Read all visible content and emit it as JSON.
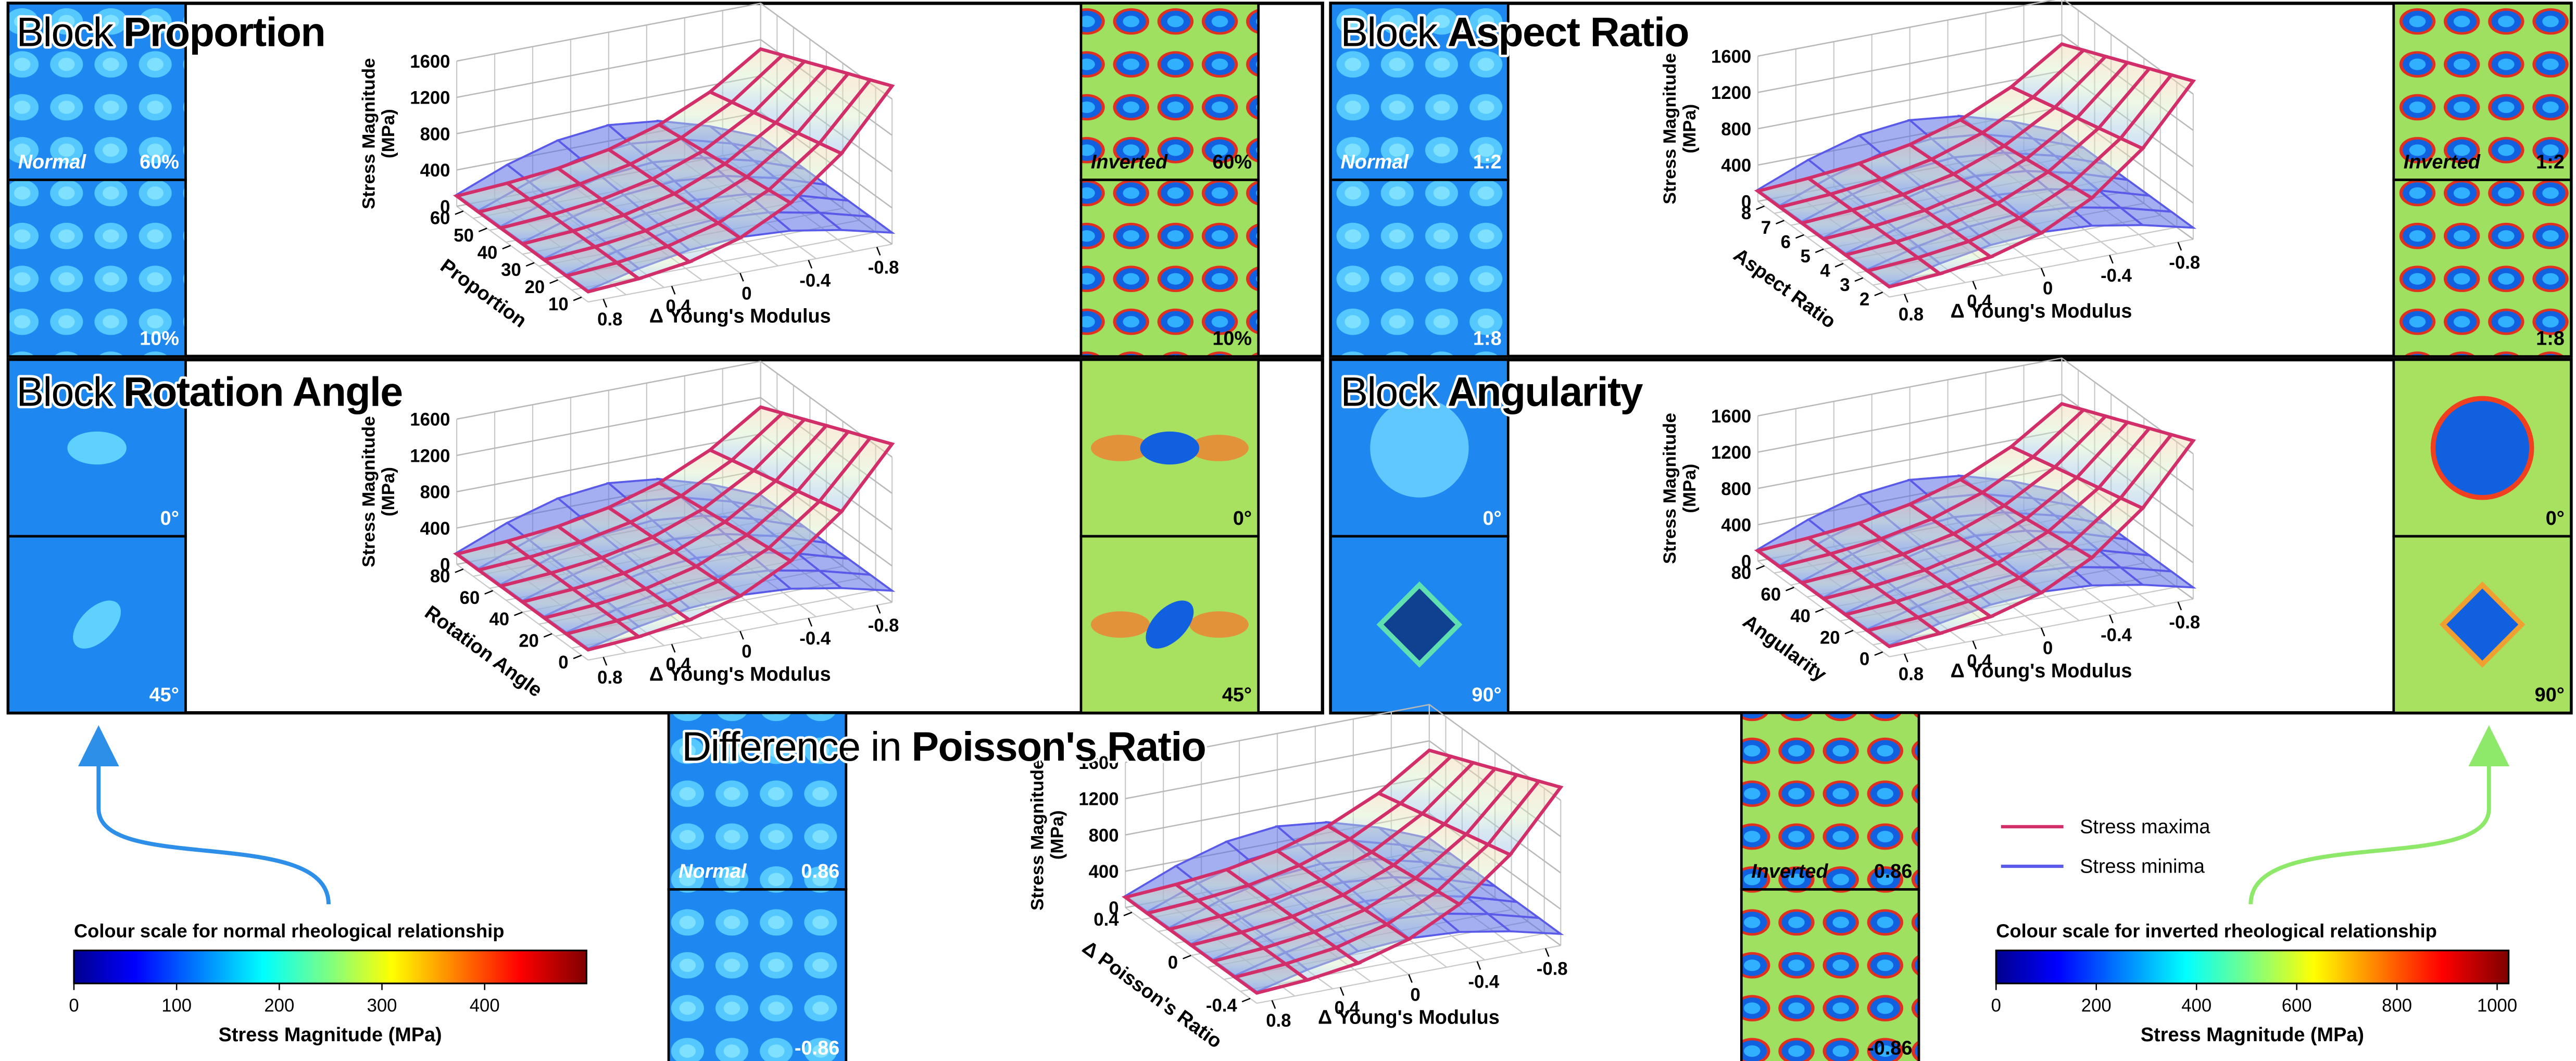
{
  "panels": [
    {
      "title_prefix": "Block",
      "title_main": "Proportion",
      "normal_label": "Normal",
      "normal_top": "60%",
      "normal_bottom": "10%",
      "inverted_label": "Inverted",
      "inverted_top": "60%",
      "inverted_bottom": "10%",
      "z_label_1": "Stress Magnitude",
      "z_label_2": "(MPa)",
      "z_ticks": [
        0,
        400,
        800,
        1200,
        1600
      ],
      "y_label": "Proportion",
      "y_ticks": [
        60,
        50,
        40,
        30,
        20,
        10
      ],
      "x_label": "Δ Young's Modulus",
      "x_ticks": [
        0.8,
        0.4,
        0,
        -0.4,
        -0.8
      ]
    },
    {
      "title_prefix": "Block",
      "title_main": "Aspect Ratio",
      "normal_label": "Normal",
      "normal_top": "1:2",
      "normal_bottom": "1:8",
      "inverted_label": "Inverted",
      "inverted_top": "1:2",
      "inverted_bottom": "1:8",
      "z_label_1": "Stress Magnitude",
      "z_label_2": "(MPa)",
      "z_ticks": [
        0,
        400,
        800,
        1200,
        1600
      ],
      "y_label": "Aspect Ratio",
      "y_ticks": [
        8,
        7,
        6,
        5,
        4,
        3,
        2
      ],
      "x_label": "Δ Young's Modulus",
      "x_ticks": [
        0.8,
        0.4,
        0,
        -0.4,
        -0.8
      ]
    },
    {
      "title_prefix": "Block",
      "title_main": "Rotation Angle",
      "normal_top": "0°",
      "normal_bottom": "45°",
      "inverted_top": "0°",
      "inverted_bottom": "45°",
      "z_label_1": "Stress Magnitude",
      "z_label_2": "(MPa)",
      "z_ticks": [
        0,
        400,
        800,
        1200,
        1600
      ],
      "y_label": "Rotation Angle",
      "y_ticks": [
        80,
        60,
        40,
        20,
        0
      ],
      "x_label": "Δ Young's Modulus",
      "x_ticks": [
        0.8,
        0.4,
        0,
        -0.4,
        -0.8
      ]
    },
    {
      "title_prefix": "Block",
      "title_main": "Angularity",
      "normal_top": "0°",
      "normal_bottom": "90°",
      "inverted_top": "0°",
      "inverted_bottom": "90°",
      "z_label_1": "Stress Magnitude",
      "z_label_2": "(MPa)",
      "z_ticks": [
        0,
        400,
        800,
        1200,
        1600
      ],
      "y_label": "Angularity",
      "y_ticks": [
        80,
        60,
        40,
        20,
        0
      ],
      "x_label": "Δ Young's Modulus",
      "x_ticks": [
        0.8,
        0.4,
        0,
        -0.4,
        -0.8
      ]
    },
    {
      "title_prefix": "Difference in",
      "title_main": "Poisson's Ratio",
      "normal_label": "Normal",
      "normal_top": "0.86",
      "normal_bottom": "-0.86",
      "inverted_label": "Inverted",
      "inverted_top": "0.86",
      "inverted_bottom": "-0.86",
      "z_label_1": "Stress Magnitude",
      "z_label_2": "(MPa)",
      "z_ticks": [
        0,
        400,
        800,
        1200,
        1600
      ],
      "y_label": "Δ Poisson's Ratio",
      "y_ticks": [
        0.4,
        0,
        -0.4
      ],
      "x_label": "Δ Young's Modulus",
      "x_ticks": [
        0.8,
        0.4,
        0,
        -0.4,
        -0.8
      ]
    }
  ],
  "legend": {
    "maxima": "Stress maxima",
    "minima": "Stress minima"
  },
  "colour_scales": [
    {
      "title": "Colour scale for normal rheological relationship",
      "ticks": [
        0,
        100,
        200,
        300,
        400
      ],
      "label": "Stress Magnitude (MPa)"
    },
    {
      "title": "Colour scale for inverted rheological relationship",
      "ticks": [
        0,
        200,
        400,
        600,
        800,
        1000
      ],
      "label": "Stress Magnitude (MPa)"
    }
  ]
}
